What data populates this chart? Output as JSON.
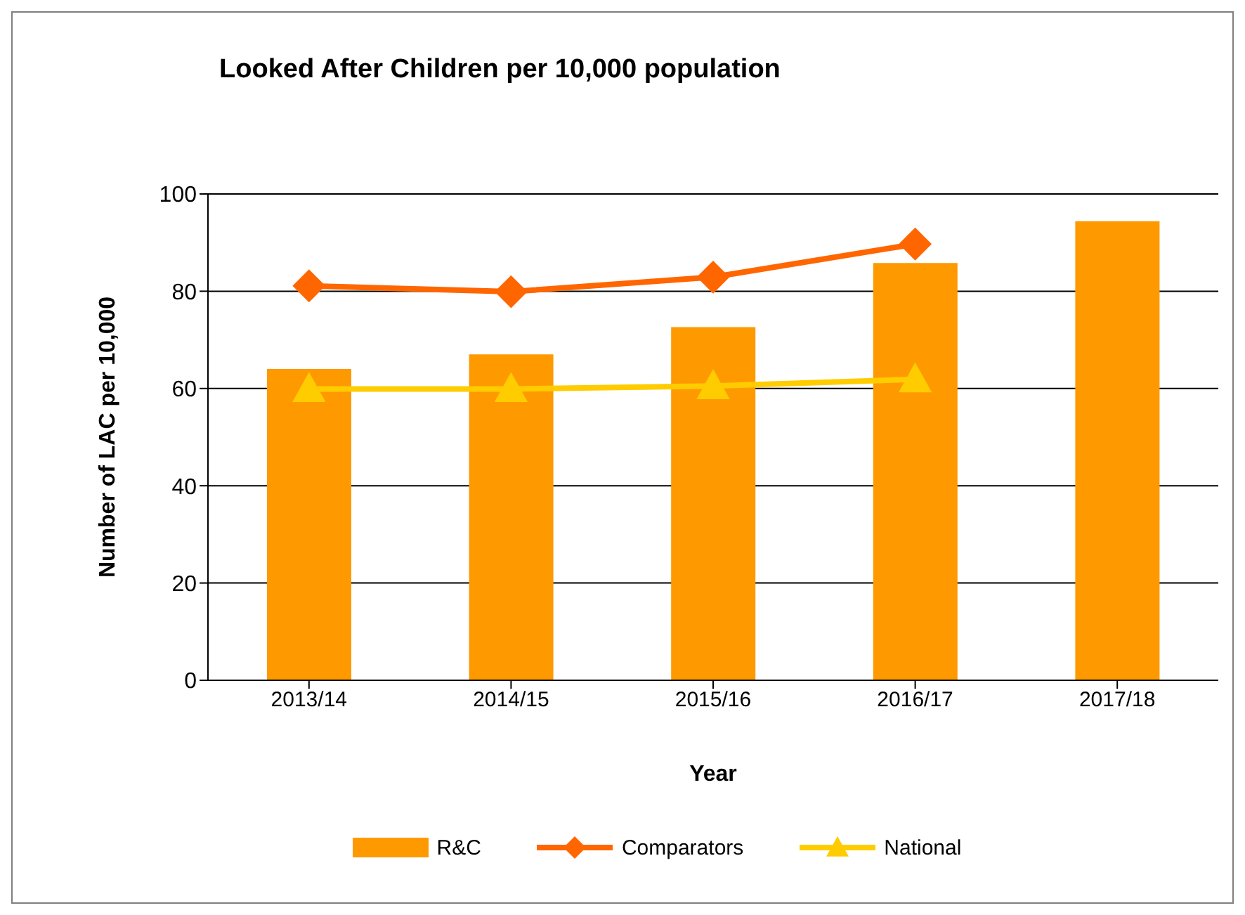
{
  "chart_data": {
    "type": "bar",
    "title": "Looked After Children per 10,000 population",
    "xlabel": "Year",
    "ylabel": "Number of LAC per 10,000",
    "categories": [
      "2013/14",
      "2014/15",
      "2015/16",
      "2016/17",
      "2017/18"
    ],
    "series": [
      {
        "name": "R&C",
        "color": "#ff9900",
        "values": [
          64.0,
          67.0,
          72.6,
          85.8,
          94.4
        ]
      },
      {
        "name": "Comparators",
        "type": "line",
        "color": "#ff6600",
        "marker": "diamond",
        "values": [
          81.1,
          79.9,
          82.9,
          89.7,
          null
        ]
      },
      {
        "name": "National",
        "type": "line",
        "color": "#ffcc00",
        "marker": "triangle",
        "values": [
          59.9,
          59.9,
          60.5,
          61.9,
          null
        ]
      }
    ],
    "ylim": [
      0,
      100
    ],
    "yticks": [
      0,
      20,
      40,
      60,
      80,
      100
    ],
    "grid": "y",
    "legend": "bottom"
  }
}
